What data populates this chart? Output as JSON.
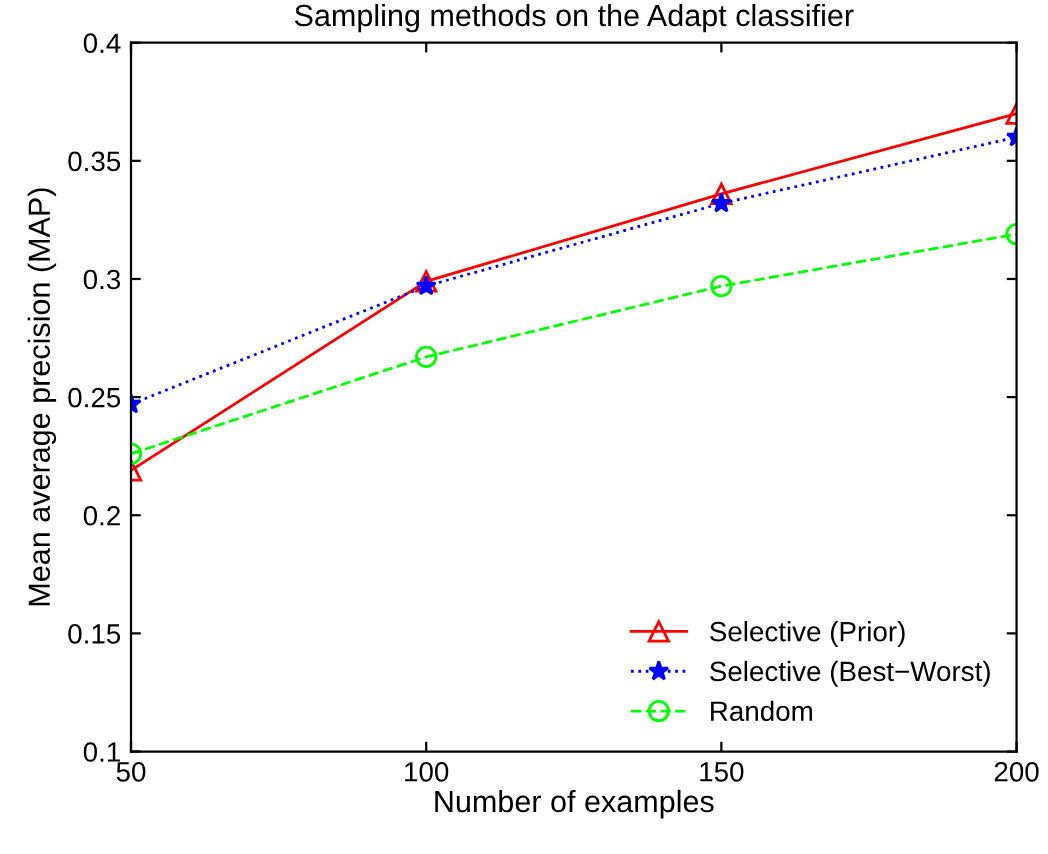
{
  "chart_data": {
    "type": "line",
    "title": "Sampling methods on the Adapt classifier",
    "xlabel": "Number of examples",
    "ylabel": "Mean average precision (MAP)",
    "x": [
      50,
      100,
      150,
      200
    ],
    "series": [
      {
        "name": "Selective (Prior)",
        "color": "#ff0000",
        "marker": "triangle",
        "line_style": "solid",
        "values": [
          0.219,
          0.299,
          0.336,
          0.37
        ]
      },
      {
        "name": "Selective (Best−Worst)",
        "color": "#0000ff",
        "marker": "star",
        "line_style": "dotted",
        "values": [
          0.247,
          0.297,
          0.332,
          0.36
        ]
      },
      {
        "name": "Random",
        "color": "#00ff00",
        "marker": "circle",
        "line_style": "dashed",
        "values": [
          0.226,
          0.267,
          0.297,
          0.319
        ]
      }
    ],
    "xlim": [
      50,
      200
    ],
    "xticks": [
      50,
      100,
      150,
      200
    ],
    "ylim": [
      0.1,
      0.4
    ],
    "yticks": [
      0.1,
      0.15,
      0.2,
      0.25,
      0.3,
      0.35,
      0.4
    ],
    "grid": false,
    "legend": "bottom right"
  }
}
